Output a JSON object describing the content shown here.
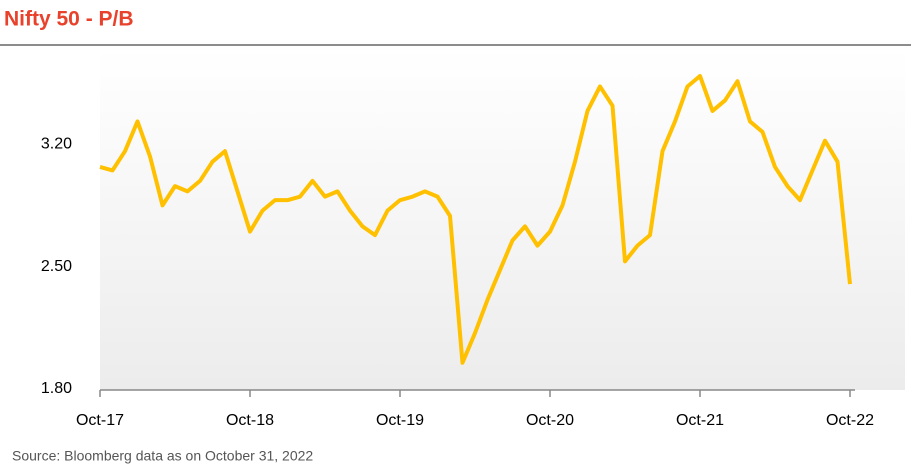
{
  "chart_data": {
    "type": "line",
    "title": "Nifty 50 - P/B",
    "source": "Source: Bloomberg data as on October 31, 2022",
    "x": [
      "2017-10",
      "2017-11",
      "2017-12",
      "2018-01",
      "2018-02",
      "2018-03",
      "2018-04",
      "2018-05",
      "2018-06",
      "2018-07",
      "2018-08",
      "2018-09",
      "2018-10",
      "2018-11",
      "2018-12",
      "2019-01",
      "2019-02",
      "2019-03",
      "2019-04",
      "2019-05",
      "2019-06",
      "2019-07",
      "2019-08",
      "2019-09",
      "2019-10",
      "2019-11",
      "2019-12",
      "2020-01",
      "2020-02",
      "2020-03",
      "2020-04",
      "2020-05",
      "2020-06",
      "2020-07",
      "2020-08",
      "2020-09",
      "2020-10",
      "2020-11",
      "2020-12",
      "2021-01",
      "2021-02",
      "2021-03",
      "2021-04",
      "2021-05",
      "2021-06",
      "2021-07",
      "2021-08",
      "2021-09",
      "2021-10",
      "2021-11",
      "2021-12",
      "2022-01",
      "2022-02",
      "2022-03",
      "2022-04",
      "2022-05",
      "2022-06",
      "2022-07",
      "2022-08",
      "2022-09",
      "2022-10"
    ],
    "series": [
      {
        "name": "Nifty 50 P/B",
        "color": "#ffc000",
        "values": [
          3.07,
          3.05,
          3.16,
          3.33,
          3.13,
          2.85,
          2.96,
          2.93,
          2.99,
          3.1,
          3.16,
          2.93,
          2.7,
          2.82,
          2.88,
          2.88,
          2.9,
          2.99,
          2.9,
          2.93,
          2.82,
          2.73,
          2.68,
          2.82,
          2.88,
          2.9,
          2.93,
          2.9,
          2.79,
          1.95,
          2.12,
          2.31,
          2.48,
          2.65,
          2.73,
          2.62,
          2.7,
          2.85,
          3.1,
          3.39,
          3.53,
          3.42,
          2.53,
          2.62,
          2.68,
          3.16,
          3.33,
          3.53,
          3.59,
          3.39,
          3.45,
          3.56,
          3.33,
          3.27,
          3.07,
          2.96,
          2.88,
          3.05,
          3.22,
          3.1,
          2.4
        ]
      }
    ],
    "xlim": [
      "2017-10",
      "2022-10"
    ],
    "xticks": [
      {
        "value": "2017-10",
        "label": "Oct-17"
      },
      {
        "value": "2018-10",
        "label": "Oct-18"
      },
      {
        "value": "2019-10",
        "label": "Oct-19"
      },
      {
        "value": "2020-10",
        "label": "Oct-20"
      },
      {
        "value": "2021-10",
        "label": "Oct-21"
      },
      {
        "value": "2022-10",
        "label": "Oct-22"
      }
    ],
    "ylim": [
      1.8,
      3.75
    ],
    "yticks": [
      {
        "value": 1.8,
        "label": "1.80"
      },
      {
        "value": 2.5,
        "label": "2.50"
      },
      {
        "value": 3.2,
        "label": "3.20"
      }
    ]
  }
}
